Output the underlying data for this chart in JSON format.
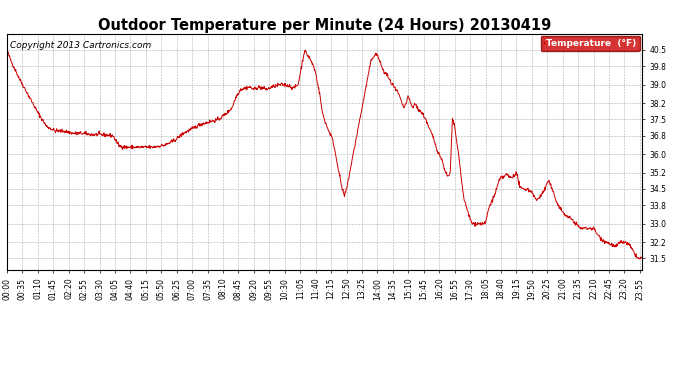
{
  "title": "Outdoor Temperature per Minute (24 Hours) 20130419",
  "copyright": "Copyright 2013 Cartronics.com",
  "legend_label": "Temperature  (°F)",
  "legend_bg": "#cc0000",
  "legend_fg": "#ffffff",
  "line_color": "#cc0000",
  "bg_color": "#ffffff",
  "plot_bg_color": "#ffffff",
  "grid_color": "#999999",
  "ylim": [
    31.0,
    41.2
  ],
  "yticks": [
    31.5,
    32.2,
    33.0,
    33.8,
    34.5,
    35.2,
    36.0,
    36.8,
    37.5,
    38.2,
    39.0,
    39.8,
    40.5
  ],
  "x_tick_interval_minutes": 35,
  "total_minutes": 1440,
  "title_fontsize": 10.5,
  "tick_fontsize": 5.5,
  "copyright_fontsize": 6.5,
  "control_points": [
    [
      0,
      40.5
    ],
    [
      10,
      40.0
    ],
    [
      30,
      39.2
    ],
    [
      50,
      38.5
    ],
    [
      70,
      37.8
    ],
    [
      90,
      37.2
    ],
    [
      110,
      37.0
    ],
    [
      130,
      37.0
    ],
    [
      150,
      36.9
    ],
    [
      170,
      36.9
    ],
    [
      190,
      36.85
    ],
    [
      210,
      36.85
    ],
    [
      240,
      36.8
    ],
    [
      255,
      36.35
    ],
    [
      270,
      36.3
    ],
    [
      285,
      36.3
    ],
    [
      300,
      36.3
    ],
    [
      330,
      36.3
    ],
    [
      360,
      36.4
    ],
    [
      380,
      36.6
    ],
    [
      400,
      36.9
    ],
    [
      420,
      37.1
    ],
    [
      440,
      37.3
    ],
    [
      460,
      37.4
    ],
    [
      480,
      37.5
    ],
    [
      500,
      37.8
    ],
    [
      510,
      38.0
    ],
    [
      520,
      38.5
    ],
    [
      530,
      38.8
    ],
    [
      540,
      38.85
    ],
    [
      550,
      38.9
    ],
    [
      560,
      38.8
    ],
    [
      570,
      38.9
    ],
    [
      580,
      38.85
    ],
    [
      590,
      38.8
    ],
    [
      600,
      38.9
    ],
    [
      610,
      38.95
    ],
    [
      620,
      39.0
    ],
    [
      630,
      39.0
    ],
    [
      640,
      38.95
    ],
    [
      650,
      38.85
    ],
    [
      660,
      39.0
    ],
    [
      670,
      40.0
    ],
    [
      675,
      40.5
    ],
    [
      680,
      40.3
    ],
    [
      685,
      40.2
    ],
    [
      690,
      40.0
    ],
    [
      695,
      39.8
    ],
    [
      700,
      39.5
    ],
    [
      705,
      39.0
    ],
    [
      710,
      38.5
    ],
    [
      715,
      37.8
    ],
    [
      720,
      37.5
    ],
    [
      725,
      37.2
    ],
    [
      730,
      37.0
    ],
    [
      735,
      36.8
    ],
    [
      740,
      36.5
    ],
    [
      745,
      36.0
    ],
    [
      750,
      35.5
    ],
    [
      755,
      35.0
    ],
    [
      760,
      34.5
    ],
    [
      765,
      34.2
    ],
    [
      770,
      34.5
    ],
    [
      775,
      35.0
    ],
    [
      780,
      35.5
    ],
    [
      785,
      36.0
    ],
    [
      790,
      36.5
    ],
    [
      795,
      37.0
    ],
    [
      800,
      37.5
    ],
    [
      805,
      38.0
    ],
    [
      810,
      38.5
    ],
    [
      815,
      39.0
    ],
    [
      820,
      39.5
    ],
    [
      825,
      40.0
    ],
    [
      830,
      40.2
    ],
    [
      835,
      40.3
    ],
    [
      840,
      40.3
    ],
    [
      845,
      40.0
    ],
    [
      850,
      39.8
    ],
    [
      855,
      39.5
    ],
    [
      860,
      39.5
    ],
    [
      865,
      39.3
    ],
    [
      870,
      39.1
    ],
    [
      875,
      39.0
    ],
    [
      880,
      38.8
    ],
    [
      885,
      38.7
    ],
    [
      890,
      38.5
    ],
    [
      895,
      38.2
    ],
    [
      900,
      38.0
    ],
    [
      905,
      38.2
    ],
    [
      910,
      38.5
    ],
    [
      915,
      38.2
    ],
    [
      920,
      38.0
    ],
    [
      925,
      38.2
    ],
    [
      930,
      38.0
    ],
    [
      940,
      37.8
    ],
    [
      950,
      37.5
    ],
    [
      955,
      37.2
    ],
    [
      960,
      37.0
    ],
    [
      965,
      36.8
    ],
    [
      970,
      36.5
    ],
    [
      975,
      36.2
    ],
    [
      980,
      36.0
    ],
    [
      985,
      35.8
    ],
    [
      990,
      35.5
    ],
    [
      995,
      35.2
    ],
    [
      1000,
      35.0
    ],
    [
      1005,
      35.2
    ],
    [
      1010,
      37.5
    ],
    [
      1015,
      37.2
    ],
    [
      1020,
      36.5
    ],
    [
      1025,
      35.8
    ],
    [
      1030,
      35.0
    ],
    [
      1035,
      34.2
    ],
    [
      1040,
      33.8
    ],
    [
      1045,
      33.5
    ],
    [
      1050,
      33.2
    ],
    [
      1055,
      33.0
    ],
    [
      1060,
      33.0
    ],
    [
      1065,
      33.0
    ],
    [
      1070,
      33.0
    ],
    [
      1075,
      33.0
    ],
    [
      1080,
      33.0
    ],
    [
      1085,
      33.0
    ],
    [
      1090,
      33.5
    ],
    [
      1095,
      33.8
    ],
    [
      1100,
      34.0
    ],
    [
      1105,
      34.2
    ],
    [
      1110,
      34.5
    ],
    [
      1115,
      34.8
    ],
    [
      1120,
      35.0
    ],
    [
      1125,
      35.0
    ],
    [
      1130,
      35.1
    ],
    [
      1135,
      35.1
    ],
    [
      1140,
      35.0
    ],
    [
      1145,
      35.0
    ],
    [
      1150,
      35.1
    ],
    [
      1155,
      35.2
    ],
    [
      1160,
      34.8
    ],
    [
      1165,
      34.5
    ],
    [
      1170,
      34.5
    ],
    [
      1175,
      34.5
    ],
    [
      1180,
      34.5
    ],
    [
      1185,
      34.4
    ],
    [
      1190,
      34.4
    ],
    [
      1195,
      34.2
    ],
    [
      1200,
      34.0
    ],
    [
      1210,
      34.2
    ],
    [
      1220,
      34.5
    ],
    [
      1225,
      34.8
    ],
    [
      1230,
      34.8
    ],
    [
      1235,
      34.5
    ],
    [
      1240,
      34.3
    ],
    [
      1245,
      34.0
    ],
    [
      1250,
      33.8
    ],
    [
      1260,
      33.5
    ],
    [
      1270,
      33.3
    ],
    [
      1280,
      33.2
    ],
    [
      1290,
      33.0
    ],
    [
      1300,
      32.8
    ],
    [
      1310,
      32.8
    ],
    [
      1320,
      32.8
    ],
    [
      1330,
      32.8
    ],
    [
      1340,
      32.5
    ],
    [
      1350,
      32.3
    ],
    [
      1360,
      32.2
    ],
    [
      1370,
      32.1
    ],
    [
      1380,
      32.0
    ],
    [
      1390,
      32.2
    ],
    [
      1400,
      32.2
    ],
    [
      1410,
      32.1
    ],
    [
      1420,
      31.8
    ],
    [
      1430,
      31.5
    ],
    [
      1439,
      31.5
    ]
  ]
}
